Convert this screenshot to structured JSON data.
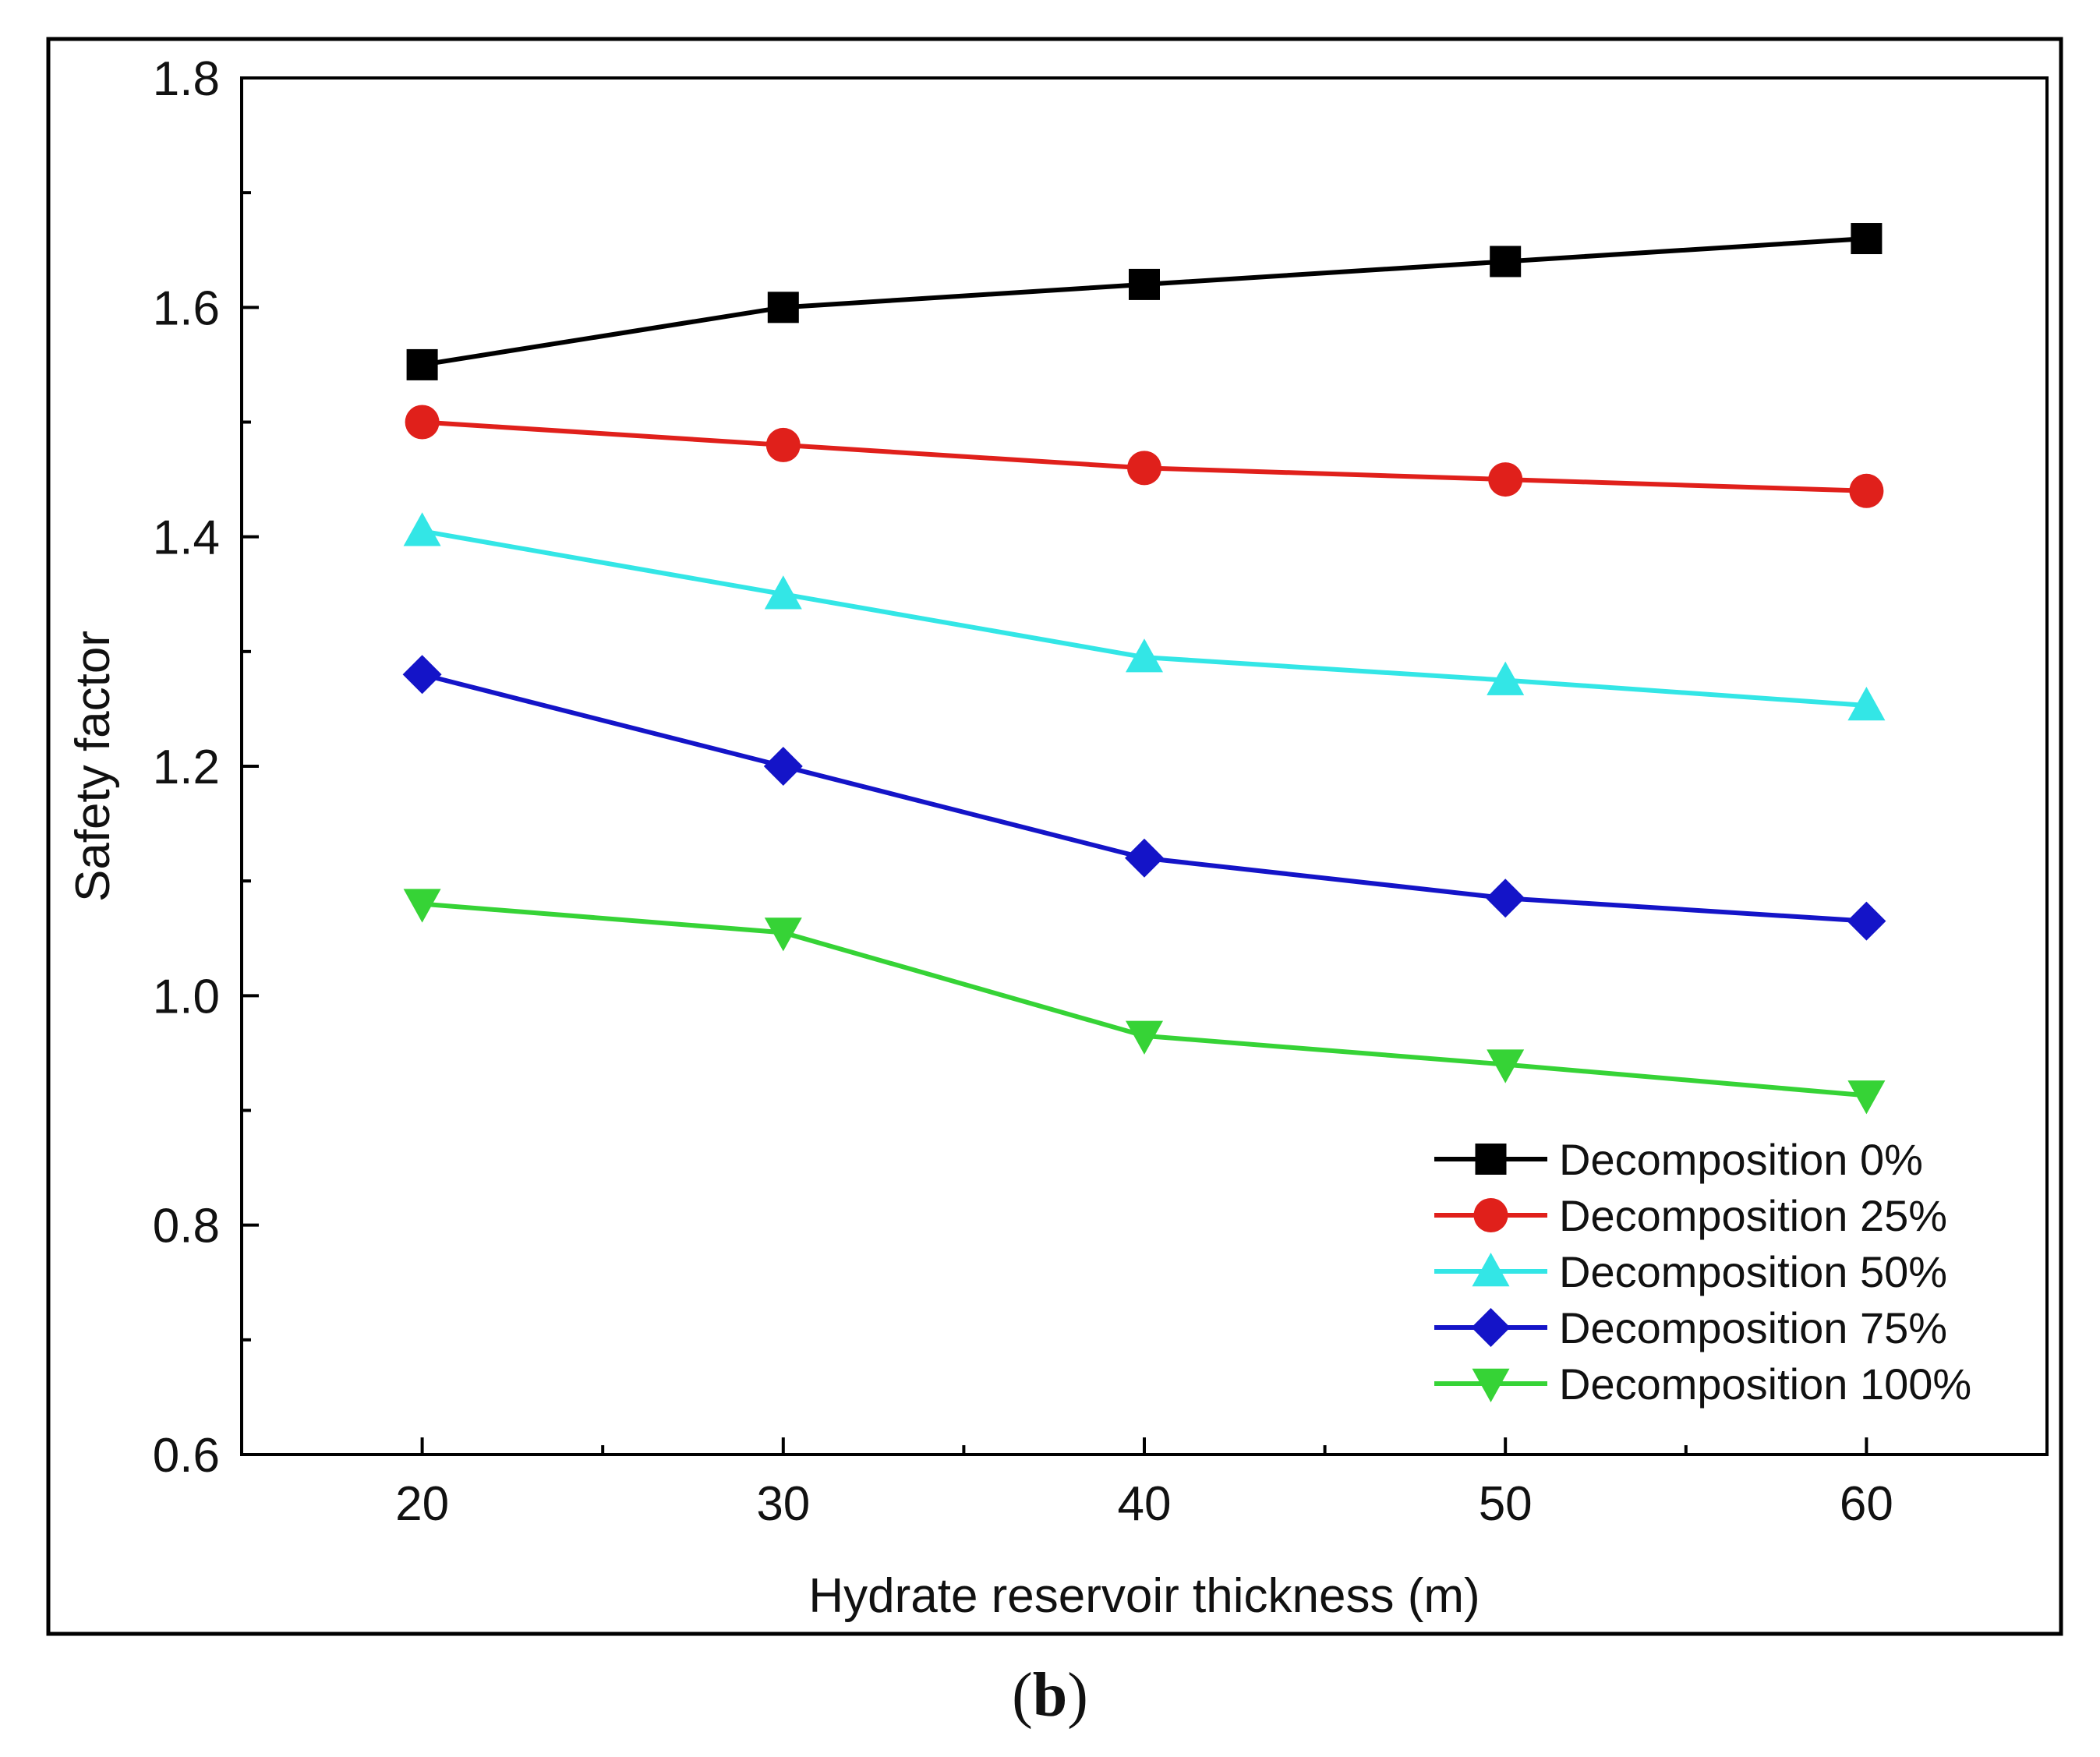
{
  "panel_label": {
    "open": "(",
    "letter": "b",
    "close": ")"
  },
  "chart_data": {
    "type": "line",
    "title": "",
    "xlabel": "Hydrate reservoir thickness (m)",
    "ylabel": "Safety factor",
    "x": [
      20,
      30,
      40,
      50,
      60
    ],
    "xlim": [
      15,
      65
    ],
    "ylim": [
      0.6,
      1.8
    ],
    "xticks": [
      20,
      30,
      40,
      50,
      60
    ],
    "xtick_labels": [
      "20",
      "30",
      "40",
      "50",
      "60"
    ],
    "x_minor_ticks": [
      25,
      35,
      45,
      55
    ],
    "yticks": [
      0.6,
      0.8,
      1.0,
      1.2,
      1.4,
      1.6,
      1.8
    ],
    "ytick_labels": [
      "0.6",
      "0.8",
      "1.0",
      "1.2",
      "1.4",
      "1.6",
      "1.8"
    ],
    "y_minor_ticks": [
      0.7,
      0.9,
      1.1,
      1.3,
      1.5,
      1.7
    ],
    "grid": false,
    "legend_position": "bottom-right",
    "series": [
      {
        "name": "Decomposition 0%",
        "color": "#000000",
        "marker": "square",
        "values": [
          1.55,
          1.6,
          1.62,
          1.64,
          1.66
        ]
      },
      {
        "name": "Decomposition 25%",
        "color": "#e0201b",
        "marker": "circle",
        "values": [
          1.5,
          1.48,
          1.46,
          1.45,
          1.44
        ]
      },
      {
        "name": "Decomposition 50%",
        "color": "#33e6e6",
        "marker": "triangle-up",
        "values": [
          1.405,
          1.35,
          1.295,
          1.275,
          1.253
        ]
      },
      {
        "name": "Decomposition 75%",
        "color": "#1414c8",
        "marker": "diamond",
        "values": [
          1.28,
          1.2,
          1.12,
          1.085,
          1.065
        ]
      },
      {
        "name": "Decomposition 100%",
        "color": "#36d336",
        "marker": "triangle-down",
        "values": [
          1.08,
          1.055,
          0.965,
          0.94,
          0.913
        ]
      }
    ]
  }
}
